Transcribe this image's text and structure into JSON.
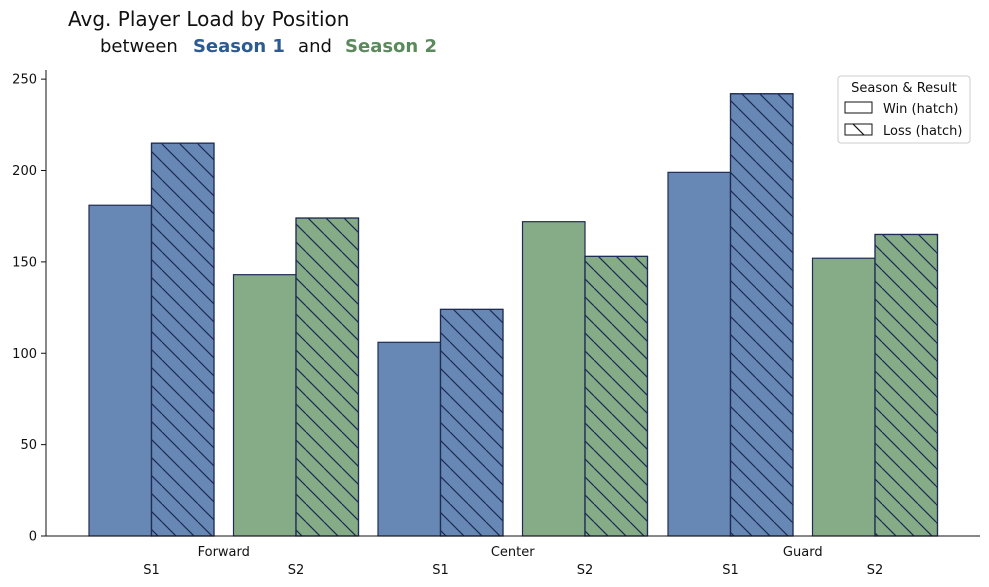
{
  "chart_data": {
    "type": "bar",
    "title": "Avg. Player Load by Position",
    "subtitle": {
      "prefix": "between",
      "season1": "Season 1",
      "middle": "and",
      "season2": "Season 2"
    },
    "categories": [
      "Forward",
      "Center",
      "Guard"
    ],
    "subgroup_labels": [
      "S1",
      "S2"
    ],
    "series": [
      {
        "season": "S1",
        "result": "Win",
        "values": [
          181,
          106,
          199
        ]
      },
      {
        "season": "S1",
        "result": "Loss",
        "values": [
          215,
          124,
          242
        ]
      },
      {
        "season": "S2",
        "result": "Win",
        "values": [
          143,
          172,
          152
        ]
      },
      {
        "season": "S2",
        "result": "Loss",
        "values": [
          174,
          153,
          165
        ]
      }
    ],
    "ylim": [
      0,
      255
    ],
    "yticks": [
      0,
      50,
      100,
      150,
      200,
      250
    ],
    "xlabel": "",
    "ylabel": "",
    "grid": false,
    "legend": {
      "title": "Season & Result",
      "placement": "top-right",
      "entries": [
        "Win (hatch)",
        "Loss (hatch)"
      ]
    },
    "colors": {
      "season1": "#6787b5",
      "season2": "#86ab87",
      "season1_text": "#2c5a93",
      "season2_text": "#5a8a5c",
      "edge": "#1f2d55",
      "hatch": "#1b2a52"
    }
  }
}
